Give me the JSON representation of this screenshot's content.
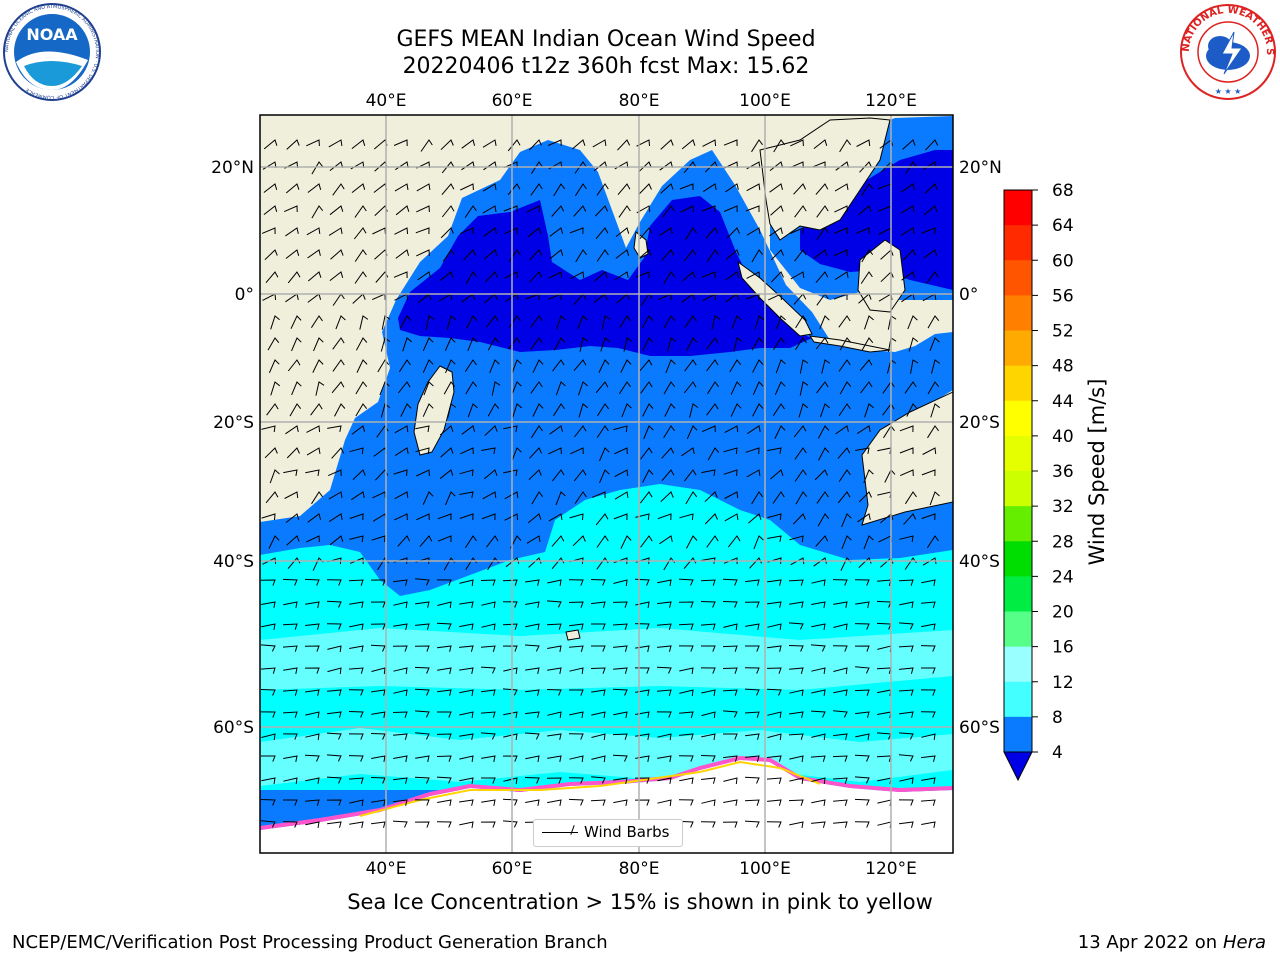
{
  "header": {
    "title_line1": "GEFS MEAN Indian Ocean Wind Speed",
    "title_line2": "20220406 t12z 360h fcst   Max: 15.62",
    "left_logo": "noaa-logo",
    "left_logo_text": "NOAA",
    "left_logo_ring_text": "NATIONAL OCEANIC AND ATMOSPHERIC ADMINISTRATION · U.S. DEPARTMENT OF COMMERCE",
    "right_logo": "national-weather-service-logo",
    "right_logo_ring_text": "NATIONAL WEATHER SERVICE"
  },
  "map": {
    "lon_ticks": [
      "40°E",
      "60°E",
      "80°E",
      "100°E",
      "120°E"
    ],
    "lat_ticks": [
      "20°N",
      "0°",
      "20°S",
      "40°S",
      "60°S"
    ],
    "legend_label": "Wind Barbs",
    "ocean_colors": {
      "speed_4_8": "#0a7bff",
      "speed_below_4": "#0000e6",
      "speed_8_12": "#00ffff",
      "speed_12_16": "#44ffff",
      "land": "#efefdc",
      "sea_ice": "#ff55cc"
    }
  },
  "colorbar": {
    "label": "Wind Speed [m/s]",
    "ticks": [
      "68",
      "64",
      "60",
      "56",
      "52",
      "48",
      "44",
      "40",
      "36",
      "32",
      "28",
      "24",
      "20",
      "16",
      "12",
      "8",
      "4"
    ],
    "colors": [
      "#ff0000",
      "#ff2a00",
      "#ff5500",
      "#ff8000",
      "#ffaa00",
      "#ffd500",
      "#ffff00",
      "#e6ff00",
      "#ccff00",
      "#b3ff00",
      "#55ee00",
      "#00dd00",
      "#00ee44",
      "#55ff88",
      "#99ffff",
      "#44ffff",
      "#00ffff",
      "#0a7bff"
    ],
    "extend_color": "#0000e6"
  },
  "footer": {
    "caption": "Sea Ice Concentration > 15% is shown in pink to yellow",
    "credit": "NCEP/EMC/Verification Post Processing Product Generation Branch",
    "date": "13 Apr 2022 on",
    "machine": "Hera"
  }
}
